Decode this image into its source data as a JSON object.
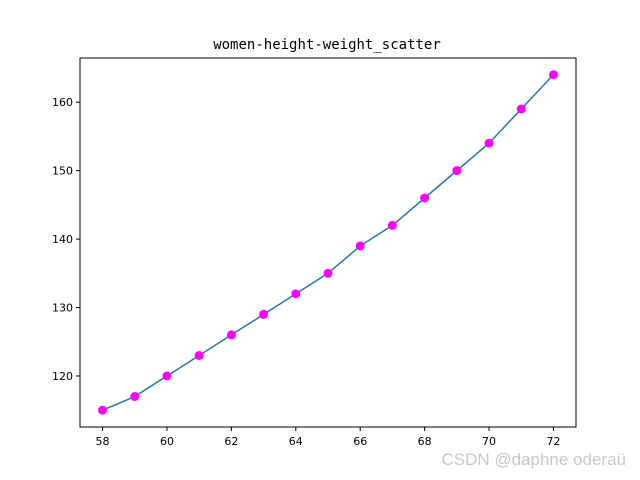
{
  "chart_data": {
    "type": "scatter",
    "title": "women-height-weight_scatter",
    "xlabel": "",
    "ylabel": "",
    "x": [
      58,
      59,
      60,
      61,
      62,
      63,
      64,
      65,
      66,
      67,
      68,
      69,
      70,
      71,
      72
    ],
    "series": [
      {
        "values": [
          115,
          117,
          120,
          123,
          126,
          129,
          132,
          135,
          139,
          142,
          146,
          150,
          154,
          159,
          164
        ],
        "marker_color": "#ff00ff",
        "line_color": "#1f77b4",
        "line": true,
        "markers": true
      }
    ],
    "xticks": [
      58,
      60,
      62,
      64,
      66,
      68,
      70,
      72
    ],
    "yticks": [
      120,
      130,
      140,
      150,
      160
    ],
    "xlim": [
      57.3,
      72.7
    ],
    "ylim": [
      112.55,
      166.45
    ],
    "grid": false,
    "legend": "none"
  },
  "watermark": "CSDN @daphne oderaü"
}
